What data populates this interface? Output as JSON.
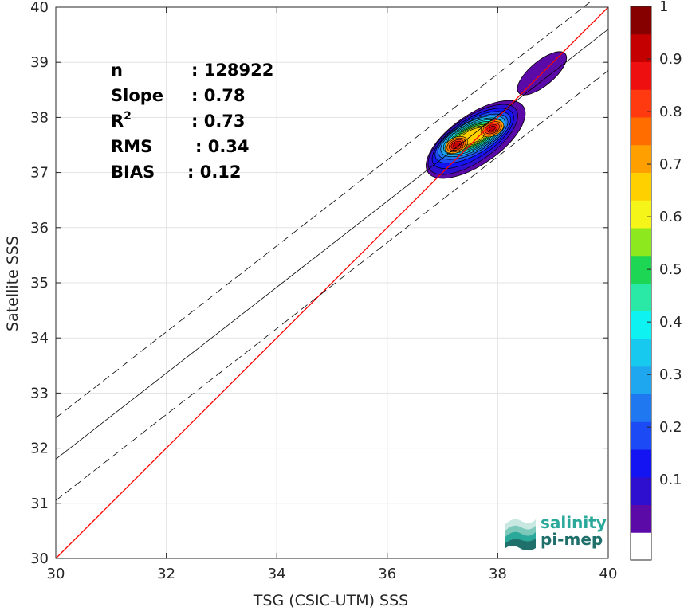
{
  "chart_data": {
    "type": "scatter",
    "subtype": "density-contour",
    "xlabel": "TSG (CSIC-UTM) SSS",
    "ylabel": "Satellite SSS",
    "xlim": [
      30,
      40
    ],
    "ylim": [
      30,
      40
    ],
    "xticks": [
      30,
      32,
      34,
      36,
      38,
      40
    ],
    "yticks": [
      30,
      31,
      32,
      33,
      34,
      35,
      36,
      37,
      38,
      39,
      40
    ],
    "grid": true,
    "stats": [
      {
        "label": "n",
        "value": ": 128922"
      },
      {
        "label": "Slope",
        "value": ": 0.78"
      },
      {
        "label": "R²",
        "value": ": 0.73"
      },
      {
        "label": "RMS",
        "value": ": 0.34"
      },
      {
        "label": "BIAS",
        "value": ": 0.12"
      }
    ],
    "identity_line": {
      "color": "#ff0000",
      "from": [
        30,
        30
      ],
      "to": [
        40,
        40
      ]
    },
    "fit_line": {
      "slope": 0.78,
      "intercept": 8.4
    },
    "fit_band_offset": 0.75,
    "density_peaks": [
      {
        "x": 37.25,
        "y": 37.5,
        "level": 0.9
      },
      {
        "x": 37.9,
        "y": 37.8,
        "level": 0.95
      }
    ],
    "colorbar": {
      "ticks": [
        0.1,
        0.2,
        0.3,
        0.4,
        0.5,
        0.6,
        0.7,
        0.8,
        0.9,
        1
      ],
      "tick_labels": [
        "0.1",
        "0.2",
        "0.3",
        "0.4",
        "0.5",
        "0.6",
        "0.7",
        "0.8",
        "0.9",
        "1"
      ],
      "colors": [
        "#ffffff",
        "#5b0aa8",
        "#2e0fd0",
        "#1414f2",
        "#1c4bf5",
        "#1f78f0",
        "#1ea7ee",
        "#17c9ee",
        "#0ff2f2",
        "#2ae9a6",
        "#1dd653",
        "#8de81d",
        "#f5f51a",
        "#ffd000",
        "#ffa000",
        "#ff6c00",
        "#ff3a10",
        "#ee1010",
        "#c40000",
        "#860000"
      ]
    }
  },
  "logo": {
    "line1": "salinity",
    "line2": "pi-mep"
  }
}
